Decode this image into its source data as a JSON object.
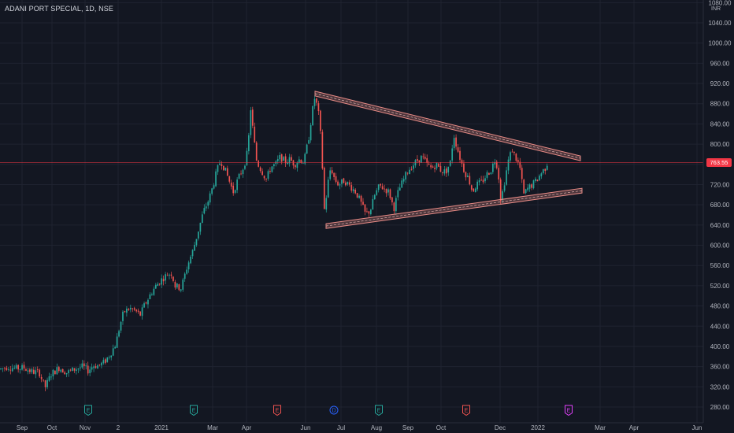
{
  "header": {
    "symbol": "ADANI PORT SPECIAL",
    "interval": "1D",
    "exchange": "NSE",
    "currency": "INR"
  },
  "colors": {
    "background": "#131722",
    "grid": "#1f2330",
    "up": "#26a69a",
    "down": "#ef5350",
    "price_line": "#f23645",
    "trendline": "#e88b86",
    "axis_text": "#b2b5be"
  },
  "chart_data": {
    "type": "candlestick",
    "y_axis": {
      "ticks": [
        280,
        320,
        360,
        400,
        440,
        480,
        520,
        560,
        600,
        640,
        680,
        720,
        760,
        800,
        840,
        880,
        920,
        960,
        1000,
        1040,
        1080
      ],
      "range": [
        260,
        1080
      ]
    },
    "x_axis": {
      "labels": [
        "Sep",
        "Oct",
        "Nov",
        "2",
        "2021",
        "Mar",
        "Apr",
        "Jun",
        "Jul",
        "Aug",
        "Sep",
        "Oct",
        "Dec",
        "2022",
        "Mar",
        "Apr",
        "Jun"
      ]
    },
    "last_price": {
      "value": 763.55,
      "label": "763.55"
    },
    "price_path": [
      [
        0,
        355
      ],
      [
        10,
        360
      ],
      [
        20,
        356
      ],
      [
        30,
        358
      ],
      [
        40,
        350
      ],
      [
        50,
        348
      ],
      [
        57,
        318
      ],
      [
        65,
        345
      ],
      [
        75,
        358
      ],
      [
        85,
        348
      ],
      [
        95,
        355
      ],
      [
        105,
        360
      ],
      [
        112,
        352
      ],
      [
        118,
        362
      ],
      [
        125,
        362
      ],
      [
        132,
        368
      ],
      [
        140,
        385
      ],
      [
        147,
        405
      ],
      [
        152,
        440
      ],
      [
        157,
        468
      ],
      [
        165,
        475
      ],
      [
        172,
        470
      ],
      [
        178,
        462
      ],
      [
        183,
        480
      ],
      [
        190,
        500
      ],
      [
        197,
        518
      ],
      [
        205,
        532
      ],
      [
        212,
        542
      ],
      [
        218,
        545
      ],
      [
        222,
        520
      ],
      [
        230,
        515
      ],
      [
        238,
        560
      ],
      [
        245,
        590
      ],
      [
        252,
        630
      ],
      [
        258,
        665
      ],
      [
        265,
        690
      ],
      [
        270,
        715
      ],
      [
        275,
        745
      ],
      [
        280,
        768
      ],
      [
        285,
        752
      ],
      [
        290,
        732
      ],
      [
        296,
        705
      ],
      [
        302,
        730
      ],
      [
        310,
        758
      ],
      [
        315,
        790
      ],
      [
        318,
        875
      ],
      [
        322,
        815
      ],
      [
        326,
        765
      ],
      [
        332,
        748
      ],
      [
        338,
        730
      ],
      [
        344,
        755
      ],
      [
        350,
        760
      ],
      [
        356,
        775
      ],
      [
        362,
        765
      ],
      [
        368,
        770
      ],
      [
        374,
        760
      ],
      [
        380,
        770
      ],
      [
        386,
        765
      ],
      [
        392,
        812
      ],
      [
        396,
        860
      ],
      [
        400,
        895
      ],
      [
        405,
        855
      ],
      [
        408,
        800
      ],
      [
        412,
        665
      ],
      [
        416,
        720
      ],
      [
        420,
        755
      ],
      [
        425,
        730
      ],
      [
        430,
        720
      ],
      [
        437,
        728
      ],
      [
        444,
        718
      ],
      [
        452,
        705
      ],
      [
        458,
        685
      ],
      [
        464,
        662
      ],
      [
        470,
        668
      ],
      [
        476,
        700
      ],
      [
        482,
        718
      ],
      [
        488,
        712
      ],
      [
        494,
        705
      ],
      [
        500,
        672
      ],
      [
        506,
        708
      ],
      [
        512,
        728
      ],
      [
        518,
        748
      ],
      [
        524,
        758
      ],
      [
        530,
        768
      ],
      [
        536,
        775
      ],
      [
        542,
        760
      ],
      [
        548,
        752
      ],
      [
        554,
        760
      ],
      [
        560,
        748
      ],
      [
        566,
        745
      ],
      [
        572,
        765
      ],
      [
        576,
        820
      ],
      [
        580,
        795
      ],
      [
        585,
        768
      ],
      [
        590,
        745
      ],
      [
        595,
        732
      ],
      [
        600,
        706
      ],
      [
        605,
        720
      ],
      [
        612,
        725
      ],
      [
        618,
        740
      ],
      [
        624,
        750
      ],
      [
        628,
        770
      ],
      [
        632,
        755
      ],
      [
        636,
        688
      ],
      [
        640,
        720
      ],
      [
        645,
        765
      ],
      [
        650,
        790
      ],
      [
        655,
        772
      ],
      [
        660,
        755
      ],
      [
        665,
        700
      ],
      [
        670,
        712
      ],
      [
        676,
        720
      ],
      [
        682,
        730
      ],
      [
        688,
        745
      ],
      [
        692,
        752
      ],
      [
        695,
        763
      ]
    ],
    "trendlines": [
      {
        "name": "upper",
        "from": [
          "2021-06",
          900
        ],
        "to": [
          "2022-02",
          772
        ]
      },
      {
        "name": "lower",
        "from": [
          "2021-06",
          638
        ],
        "to": [
          "2022-02",
          708
        ]
      }
    ],
    "events": [
      {
        "type": "E",
        "position": "Nov",
        "color": "#26a69a"
      },
      {
        "type": "E",
        "position": "Mar",
        "color": "#26a69a"
      },
      {
        "type": "E",
        "position": "Apr-May",
        "color": "#ef5350"
      },
      {
        "type": "D",
        "position": "Jun",
        "color": "#2962ff"
      },
      {
        "type": "E",
        "position": "Aug",
        "color": "#26a69a"
      },
      {
        "type": "E",
        "position": "Oct-Nov",
        "color": "#ef5350"
      },
      {
        "type": "E",
        "position": "Jan-Feb",
        "color": "#e040fb"
      }
    ]
  }
}
